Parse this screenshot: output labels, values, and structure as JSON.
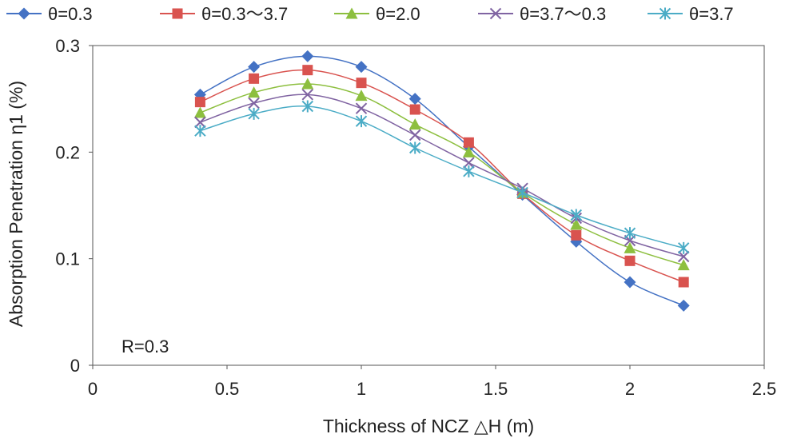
{
  "chart_data": {
    "type": "line",
    "title": "",
    "xlabel": "Thickness of NCZ △H (m)",
    "ylabel": "Absorption Penetration η1 (%)",
    "xlim": [
      0,
      2.5
    ],
    "ylim": [
      0,
      0.3
    ],
    "xticks": [
      0,
      0.5,
      1,
      1.5,
      2,
      2.5
    ],
    "yticks": [
      0,
      0.1,
      0.2,
      0.3
    ],
    "xtick_labels": [
      "0",
      "0.5",
      "1",
      "1.5",
      "2",
      "2.5"
    ],
    "ytick_labels": [
      "0",
      "0.1",
      "0.2",
      "0.3"
    ],
    "grid": false,
    "legend_position": "top",
    "annotation": "R=0.3",
    "x": [
      0.4,
      0.6,
      0.8,
      1.0,
      1.2,
      1.4,
      1.6,
      1.8,
      2.0,
      2.2
    ],
    "series": [
      {
        "name": "θ=0.3",
        "color": "#4472C4",
        "marker": "diamond",
        "values": [
          0.254,
          0.28,
          0.29,
          0.28,
          0.25,
          0.205,
          0.16,
          0.116,
          0.078,
          0.056
        ]
      },
      {
        "name": "θ=0.3～3.7",
        "color": "#D9534F",
        "marker": "square",
        "values": [
          0.247,
          0.269,
          0.277,
          0.265,
          0.24,
          0.209,
          0.161,
          0.122,
          0.098,
          0.078
        ]
      },
      {
        "name": "θ=2.0",
        "color": "#8DBF3F",
        "marker": "triangle",
        "values": [
          0.237,
          0.256,
          0.264,
          0.253,
          0.226,
          0.2,
          0.162,
          0.132,
          0.11,
          0.094
        ]
      },
      {
        "name": "θ=3.7～0.3",
        "color": "#8064A2",
        "marker": "x",
        "values": [
          0.228,
          0.246,
          0.254,
          0.241,
          0.216,
          0.19,
          0.166,
          0.138,
          0.117,
          0.102
        ]
      },
      {
        "name": "θ=3.7",
        "color": "#4BACC6",
        "marker": "star",
        "values": [
          0.22,
          0.236,
          0.243,
          0.229,
          0.204,
          0.182,
          0.162,
          0.141,
          0.124,
          0.11
        ]
      }
    ]
  }
}
